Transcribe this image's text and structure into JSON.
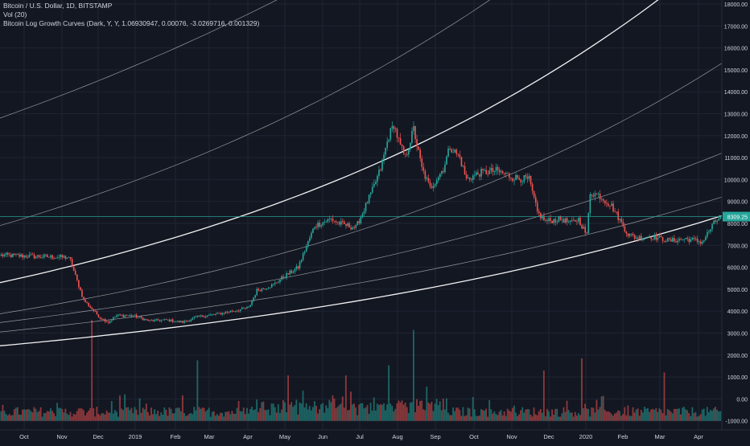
{
  "header": {
    "symbol_line": "Bitcoin / U.S. Dollar, 1D, BITSTAMP",
    "volume_line": "Vol (20)",
    "indicator_line": "Bitcoin Log Growth Curves (Dark, Y, Y, 1.06930947, 0.00076, -3.0269716, 0.001329)"
  },
  "colors": {
    "background": "#131722",
    "grid": "#1f2433",
    "text": "#d1d4dc",
    "up": "#26a69a",
    "down": "#ef5350",
    "curve": "#ffffff",
    "price_line": "#26a69a",
    "price_badge": "#26a69a"
  },
  "chart_data": {
    "type": "candlestick",
    "price_axis_labels": [
      "18000.00",
      "17000.00",
      "16000.00",
      "15000.00",
      "14000.00",
      "13000.00",
      "12000.00",
      "11000.00",
      "10000.00",
      "9000.00",
      "8000.00",
      "7000.00",
      "6000.00",
      "5000.00",
      "4000.00",
      "3000.00",
      "2000.00",
      "1000.00",
      "0.00",
      "-1000.00"
    ],
    "time_axis_labels": [
      "Oct",
      "Nov",
      "Dec",
      "2019",
      "Feb",
      "Mar",
      "Apr",
      "May",
      "Jun",
      "Jul",
      "Aug",
      "Sep",
      "Oct",
      "Nov",
      "Dec",
      "2020",
      "Feb",
      "Mar",
      "Apr"
    ],
    "last_price": 8309.25,
    "last_price_label": "8309.25",
    "price_keypoints": [
      [
        0,
        6550
      ],
      [
        20,
        6500
      ],
      [
        40,
        6450
      ],
      [
        42,
        6300
      ],
      [
        45,
        5600
      ],
      [
        50,
        4500
      ],
      [
        55,
        4100
      ],
      [
        60,
        3700
      ],
      [
        65,
        3500
      ],
      [
        70,
        3800
      ],
      [
        80,
        3800
      ],
      [
        90,
        3550
      ],
      [
        100,
        3600
      ],
      [
        110,
        3500
      ],
      [
        120,
        3750
      ],
      [
        130,
        3850
      ],
      [
        140,
        4000
      ],
      [
        150,
        4150
      ],
      [
        155,
        4950
      ],
      [
        165,
        5200
      ],
      [
        170,
        5500
      ],
      [
        180,
        6000
      ],
      [
        190,
        7900
      ],
      [
        200,
        8200
      ],
      [
        205,
        8000
      ],
      [
        215,
        7800
      ],
      [
        225,
        9500
      ],
      [
        230,
        10500
      ],
      [
        235,
        12000
      ],
      [
        238,
        12500
      ],
      [
        242,
        11500
      ],
      [
        245,
        11000
      ],
      [
        250,
        12300
      ],
      [
        255,
        10500
      ],
      [
        260,
        9600
      ],
      [
        268,
        10500
      ],
      [
        272,
        11500
      ],
      [
        278,
        11000
      ],
      [
        282,
        10000
      ],
      [
        290,
        10300
      ],
      [
        300,
        10400
      ],
      [
        310,
        10100
      ],
      [
        320,
        10000
      ],
      [
        325,
        8500
      ],
      [
        330,
        8100
      ],
      [
        340,
        8200
      ],
      [
        345,
        8000
      ],
      [
        350,
        8200
      ],
      [
        355,
        7450
      ],
      [
        357,
        9400
      ],
      [
        362,
        9300
      ],
      [
        370,
        8800
      ],
      [
        380,
        7500
      ],
      [
        385,
        7350
      ],
      [
        395,
        7400
      ],
      [
        405,
        7200
      ],
      [
        415,
        7300
      ],
      [
        425,
        7150
      ],
      [
        432,
        8000
      ],
      [
        436,
        8309
      ]
    ],
    "volume_spikes": [
      [
        55,
        1.0
      ],
      [
        119,
        0.6
      ],
      [
        174,
        0.45
      ],
      [
        209,
        0.45
      ],
      [
        235,
        0.55
      ],
      [
        250,
        0.9
      ],
      [
        329,
        0.5
      ],
      [
        352,
        0.62
      ],
      [
        402,
        0.48
      ]
    ],
    "volume_scale_max": 3400,
    "log_curves": [
      {
        "price_at_start": 2420,
        "price_at_end": 8350
      },
      {
        "price_at_start": 3050,
        "price_at_end": 9200
      },
      {
        "price_at_start": 3480,
        "price_at_end": 11200
      },
      {
        "price_at_start": 3880,
        "price_at_end": 15300
      },
      {
        "price_at_start": 5300,
        "price_at_end": 20500
      },
      {
        "price_at_start": 7900,
        "price_at_end": 27000
      },
      {
        "price_at_start": 12800,
        "price_at_end": 32000
      }
    ],
    "grid": true,
    "legend_position": "top-left"
  }
}
